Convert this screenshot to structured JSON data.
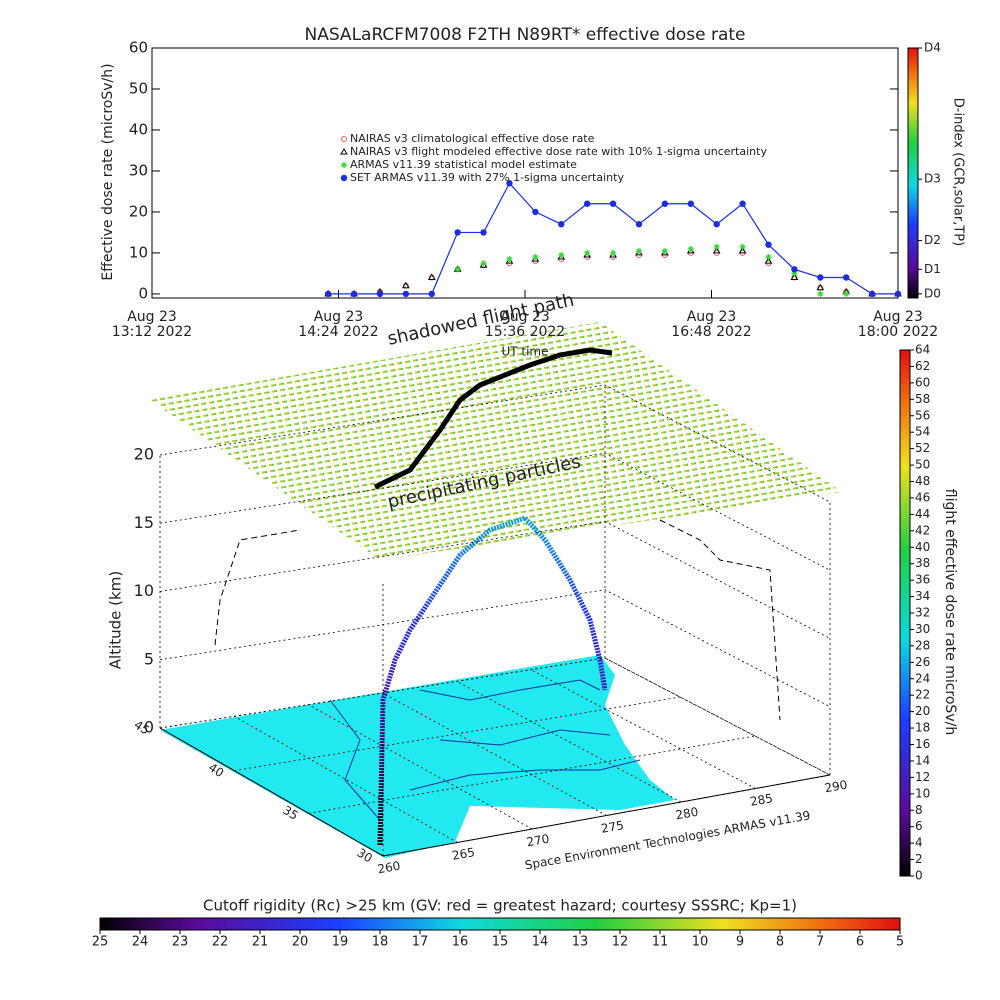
{
  "chart_data": [
    {
      "type": "line",
      "title": "NASALaRCFM7008  F2TH N89RT* effective dose rate",
      "ylabel": "Effective dose rate (microSv/h)",
      "xlabel": "UT time",
      "y2label": "D-index (GCR,solar,TP)",
      "xlim": [
        "2022-08-23 13:12",
        "2022-08-23 18:00"
      ],
      "xticks": [
        {
          "value": "2022-08-23 13:12",
          "label": [
            "Aug 23",
            "13:12 2022"
          ]
        },
        {
          "value": "2022-08-23 14:24",
          "label": [
            "Aug 23",
            "14:24 2022"
          ]
        },
        {
          "value": "2022-08-23 15:36",
          "label": [
            "Aug 23",
            "15:36 2022"
          ]
        },
        {
          "value": "2022-08-23 16:48",
          "label": [
            "Aug 23",
            "16:48 2022"
          ]
        },
        {
          "value": "2022-08-23 18:00",
          "label": [
            "Aug 23",
            "18:00 2022"
          ]
        }
      ],
      "ylim": [
        -1,
        60
      ],
      "yticks": [
        0,
        10,
        20,
        30,
        40,
        50,
        60
      ],
      "y2lim": [
        -1,
        60
      ],
      "y2ticks": [
        {
          "value": 0,
          "label": "D0"
        },
        {
          "value": 6,
          "label": "D1"
        },
        {
          "value": 13,
          "label": "D2"
        },
        {
          "value": 28,
          "label": "D3"
        },
        {
          "value": 60,
          "label": "D4"
        }
      ],
      "x": [
        "2022-08-23 14:20",
        "2022-08-23 14:30",
        "2022-08-23 14:40",
        "2022-08-23 14:50",
        "2022-08-23 15:00",
        "2022-08-23 15:10",
        "2022-08-23 15:20",
        "2022-08-23 15:30",
        "2022-08-23 15:40",
        "2022-08-23 15:50",
        "2022-08-23 16:00",
        "2022-08-23 16:10",
        "2022-08-23 16:20",
        "2022-08-23 16:30",
        "2022-08-23 16:40",
        "2022-08-23 16:50",
        "2022-08-23 17:00",
        "2022-08-23 17:10",
        "2022-08-23 17:20",
        "2022-08-23 17:30",
        "2022-08-23 17:40",
        "2022-08-23 17:50",
        "2022-08-23 18:00"
      ],
      "series": [
        {
          "name": "NAIRAS v3 climatological effective dose rate",
          "color": "#e06060",
          "marker": "circle",
          "line": false,
          "values": [
            0,
            0,
            0.5,
            2,
            4,
            6,
            7,
            7.5,
            8,
            8.5,
            9,
            9,
            9.5,
            9.5,
            10,
            10,
            10,
            7.5,
            4,
            1.5,
            0.5,
            0,
            0
          ]
        },
        {
          "name": "NAIRAS v3 flight modeled effective dose rate with 10% 1-sigma uncertainty",
          "color": "#000000",
          "marker": "triangle",
          "line": false,
          "values": [
            0,
            0,
            0.5,
            2,
            4,
            6,
            7,
            8,
            8.5,
            9,
            9.5,
            9.5,
            10,
            10,
            10.5,
            10.5,
            10.5,
            8,
            4,
            1.5,
            0.5,
            0,
            0
          ]
        },
        {
          "name": "ARMAS v11.39 statistical model estimate",
          "color": "#33dd33",
          "marker": "asterisk",
          "line": false,
          "values": [
            null,
            null,
            null,
            null,
            0,
            6,
            7.5,
            8.5,
            9,
            9.5,
            10,
            10,
            10.5,
            10.5,
            11,
            11.5,
            11.5,
            9,
            5,
            0,
            0,
            0,
            0
          ]
        },
        {
          "name": "SET ARMAS v11.39 with 27% 1-sigma uncertainty",
          "color": "#1a2ee0",
          "marker": "dot",
          "line": true,
          "values": [
            0,
            0,
            0,
            0,
            0,
            15,
            15,
            27,
            20,
            17,
            22,
            22,
            17,
            22,
            22,
            17,
            22,
            12,
            6,
            4,
            4,
            0,
            0
          ]
        }
      ]
    },
    {
      "type": "surface3d",
      "zlabel": "Altitude (km)",
      "zlim": [
        0,
        20
      ],
      "zticks": [
        0,
        5,
        10,
        15,
        20
      ],
      "ylim": [
        45,
        30
      ],
      "yticks": [
        45,
        40,
        35,
        30
      ],
      "xlim": [
        260,
        290
      ],
      "xticks": [
        260,
        265,
        270,
        275,
        280,
        285,
        290
      ],
      "annotations": [
        "shadowed flight path",
        "precipitating particles"
      ],
      "credit": "Space Environment Technologies ARMAS v11.39"
    },
    {
      "type": "colorbar",
      "orientation": "vertical",
      "label": "flight effective dose rate microSv/h",
      "lim": [
        0,
        64
      ],
      "ticks": [
        0,
        2,
        4,
        6,
        8,
        10,
        12,
        14,
        16,
        18,
        20,
        22,
        24,
        26,
        28,
        30,
        32,
        34,
        36,
        38,
        40,
        42,
        44,
        46,
        48,
        50,
        52,
        54,
        56,
        58,
        60,
        62,
        64
      ]
    },
    {
      "type": "colorbar",
      "orientation": "horizontal",
      "label": "Cutoff rigidity (Rc) >25 km (GV: red = greatest hazard; courtesy SSSRC; Kp=1)",
      "lim": [
        25,
        5
      ],
      "ticks": [
        25,
        24,
        23,
        22,
        21,
        20,
        19,
        18,
        17,
        16,
        15,
        14,
        13,
        12,
        11,
        10,
        9,
        8,
        7,
        6,
        5
      ]
    }
  ]
}
